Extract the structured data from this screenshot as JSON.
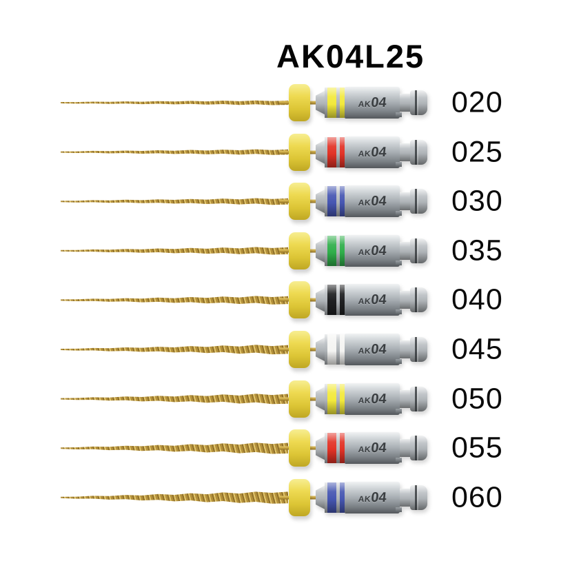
{
  "title": "AK04L25",
  "handle_label": {
    "prefix": "AK",
    "code": "04"
  },
  "colors": {
    "background": "#ffffff",
    "collar_yellow": "#eeda52",
    "file_gold": "#c3a040",
    "handle_silver": "#b7bcc0",
    "label_text": "#0a0a0a"
  },
  "rows": [
    {
      "size": "020",
      "ring_color": "#f2e93c",
      "ring_color_name": "yellow"
    },
    {
      "size": "025",
      "ring_color": "#e23226",
      "ring_color_name": "red"
    },
    {
      "size": "030",
      "ring_color": "#4656b2",
      "ring_color_name": "blue"
    },
    {
      "size": "035",
      "ring_color": "#2fae4a",
      "ring_color_name": "green"
    },
    {
      "size": "040",
      "ring_color": "#1f2022",
      "ring_color_name": "black"
    },
    {
      "size": "045",
      "ring_color": "#f4f4f2",
      "ring_color_name": "white"
    },
    {
      "size": "050",
      "ring_color": "#f2e93c",
      "ring_color_name": "yellow"
    },
    {
      "size": "055",
      "ring_color": "#e23226",
      "ring_color_name": "red"
    },
    {
      "size": "060",
      "ring_color": "#4656b2",
      "ring_color_name": "blue"
    }
  ]
}
